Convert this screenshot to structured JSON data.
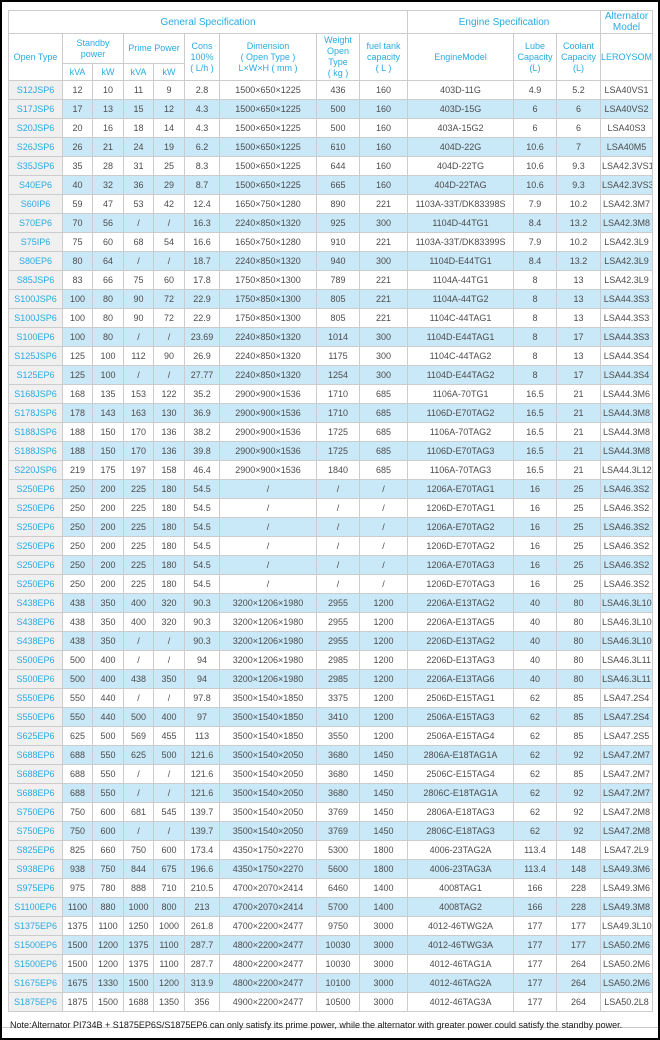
{
  "colors": {
    "accent_text": "#29abe2",
    "alt_row_bg": "#c9e8f8",
    "label_col_bg": "#f0f0f0",
    "border": "#cccccc",
    "body_text": "#4d4d4d"
  },
  "table": {
    "group_headers": {
      "general": "General Specification",
      "engine": "Engine Specification",
      "alternator": "Alternator Model"
    },
    "headers": {
      "open_type": "Open Type",
      "standby_power": "Standby\npower",
      "prime_power": "Prime Power",
      "kva": "kVA",
      "kw": "kW",
      "cons": "Cons\n100%\n( L/h )",
      "dimension": "Dimension\n( Open Type )\nL×W×H ( mm )",
      "weight": "Weight\nOpen Type\n( kg )",
      "fuel": "fuel tank\ncapacity\n( L )",
      "engine_model": "EngineModel",
      "lube": "Lube\nCapacity\n(L)",
      "coolant": "Coolant\nCapacity\n(L)",
      "leroysomer": "LEROYSOMER"
    },
    "rows": [
      [
        "S12JSP6",
        "12",
        "10",
        "11",
        "9",
        "2.8",
        "1500×650×1225",
        "436",
        "160",
        "403D-11G",
        "4.9",
        "5.2",
        "LSA40VS1"
      ],
      [
        "S17JSP6",
        "17",
        "13",
        "15",
        "12",
        "4.3",
        "1500×650×1225",
        "500",
        "160",
        "403D-15G",
        "6",
        "6",
        "LSA40VS2"
      ],
      [
        "S20JSP6",
        "20",
        "16",
        "18",
        "14",
        "4.3",
        "1500×650×1225",
        "500",
        "160",
        "403A-15G2",
        "6",
        "6",
        "LSA40S3"
      ],
      [
        "S26JSP6",
        "26",
        "21",
        "24",
        "19",
        "6.2",
        "1500×650×1225",
        "610",
        "160",
        "404D-22G",
        "10.6",
        "7",
        "LSA40M5"
      ],
      [
        "S35JSP6",
        "35",
        "28",
        "31",
        "25",
        "8.3",
        "1500×650×1225",
        "644",
        "160",
        "404D-22TG",
        "10.6",
        "9.3",
        "LSA42.3VS1"
      ],
      [
        "S40EP6",
        "40",
        "32",
        "36",
        "29",
        "8.7",
        "1500×650×1225",
        "665",
        "160",
        "404D-22TAG",
        "10.6",
        "9.3",
        "LSA42.3VS3"
      ],
      [
        "S60IP6",
        "59",
        "47",
        "53",
        "42",
        "12.4",
        "1650×750×1280",
        "890",
        "221",
        "1103A-33T/DK83398S",
        "7.9",
        "10.2",
        "LSA42.3M7"
      ],
      [
        "S70EP6",
        "70",
        "56",
        "/",
        "/",
        "16.3",
        "2240×850×1320",
        "925",
        "300",
        "1104D-44TG1",
        "8.4",
        "13.2",
        "LSA42.3M8"
      ],
      [
        "S75IP6",
        "75",
        "60",
        "68",
        "54",
        "16.6",
        "1650×750×1280",
        "910",
        "221",
        "1103A-33T/DK83399S",
        "7.9",
        "10.2",
        "LSA42.3L9"
      ],
      [
        "S80EP6",
        "80",
        "64",
        "/",
        "/",
        "18.7",
        "2240×850×1320",
        "940",
        "300",
        "1104D-E44TG1",
        "8.4",
        "13.2",
        "LSA42.3L9"
      ],
      [
        "S85JSP6",
        "83",
        "66",
        "75",
        "60",
        "17.8",
        "1750×850×1300",
        "789",
        "221",
        "1104A-44TG1",
        "8",
        "13",
        "LSA42.3L9"
      ],
      [
        "S100JSP6",
        "100",
        "80",
        "90",
        "72",
        "22.9",
        "1750×850×1300",
        "805",
        "221",
        "1104A-44TG2",
        "8",
        "13",
        "LSA44.3S3"
      ],
      [
        "S100JSP6",
        "100",
        "80",
        "90",
        "72",
        "22.9",
        "1750×850×1300",
        "805",
        "221",
        "1104C-44TAG1",
        "8",
        "13",
        "LSA44.3S3"
      ],
      [
        "S100EP6",
        "100",
        "80",
        "/",
        "/",
        "23.69",
        "2240×850×1320",
        "1014",
        "300",
        "1104D-E44TAG1",
        "8",
        "17",
        "LSA44.3S3"
      ],
      [
        "S125JSP6",
        "125",
        "100",
        "112",
        "90",
        "26.9",
        "2240×850×1320",
        "1175",
        "300",
        "1104C-44TAG2",
        "8",
        "13",
        "LSA44.3S4"
      ],
      [
        "S125EP6",
        "125",
        "100",
        "/",
        "/",
        "27.77",
        "2240×850×1320",
        "1254",
        "300",
        "1104D-E44TAG2",
        "8",
        "17",
        "LSA44.3S4"
      ],
      [
        "S168JSP6",
        "168",
        "135",
        "153",
        "122",
        "35.2",
        "2900×900×1536",
        "1710",
        "685",
        "1106A-70TG1",
        "16.5",
        "21",
        "LSA44.3M6"
      ],
      [
        "S178JSP6",
        "178",
        "143",
        "163",
        "130",
        "36.9",
        "2900×900×1536",
        "1710",
        "685",
        "1106D-E70TAG2",
        "16.5",
        "21",
        "LSA44.3M8"
      ],
      [
        "S188JSP6",
        "188",
        "150",
        "170",
        "136",
        "38.2",
        "2900×900×1536",
        "1725",
        "685",
        "1106A-70TAG2",
        "16.5",
        "21",
        "LSA44.3M8"
      ],
      [
        "S188JSP6",
        "188",
        "150",
        "170",
        "136",
        "39.8",
        "2900×900×1536",
        "1725",
        "685",
        "1106D-E70TAG3",
        "16.5",
        "21",
        "LSA44.3M8"
      ],
      [
        "S220JSP6",
        "219",
        "175",
        "197",
        "158",
        "46.4",
        "2900×900×1536",
        "1840",
        "685",
        "1106A-70TAG3",
        "16.5",
        "21",
        "LSA44.3L12"
      ],
      [
        "S250EP6",
        "250",
        "200",
        "225",
        "180",
        "54.5",
        "/",
        "/",
        "/",
        "1206A-E70TAG1",
        "16",
        "25",
        "LSA46.3S2"
      ],
      [
        "S250EP6",
        "250",
        "200",
        "225",
        "180",
        "54.5",
        "/",
        "/",
        "/",
        "1206D-E70TAG1",
        "16",
        "25",
        "LSA46.3S2"
      ],
      [
        "S250EP6",
        "250",
        "200",
        "225",
        "180",
        "54.5",
        "/",
        "/",
        "/",
        "1206A-E70TAG2",
        "16",
        "25",
        "LSA46.3S2"
      ],
      [
        "S250EP6",
        "250",
        "200",
        "225",
        "180",
        "54.5",
        "/",
        "/",
        "/",
        "1206D-E70TAG2",
        "16",
        "25",
        "LSA46.3S2"
      ],
      [
        "S250EP6",
        "250",
        "200",
        "225",
        "180",
        "54.5",
        "/",
        "/",
        "/",
        "1206A-E70TAG3",
        "16",
        "25",
        "LSA46.3S2"
      ],
      [
        "S250EP6",
        "250",
        "200",
        "225",
        "180",
        "54.5",
        "/",
        "/",
        "/",
        "1206D-E70TAG3",
        "16",
        "25",
        "LSA46.3S2"
      ],
      [
        "S438EP6",
        "438",
        "350",
        "400",
        "320",
        "90.3",
        "3200×1206×1980",
        "2955",
        "1200",
        "2206A-E13TAG2",
        "40",
        "80",
        "LSA46.3L10"
      ],
      [
        "S438EP6",
        "438",
        "350",
        "400",
        "320",
        "90.3",
        "3200×1206×1980",
        "2955",
        "1200",
        "2206A-E13TAG5",
        "40",
        "80",
        "LSA46.3L10"
      ],
      [
        "S438EP6",
        "438",
        "350",
        "/",
        "/",
        "90.3",
        "3200×1206×1980",
        "2955",
        "1200",
        "2206D-E13TAG2",
        "40",
        "80",
        "LSA46.3L10"
      ],
      [
        "S500EP6",
        "500",
        "400",
        "/",
        "/",
        "94",
        "3200×1206×1980",
        "2985",
        "1200",
        "2206D-E13TAG3",
        "40",
        "80",
        "LSA46.3L11"
      ],
      [
        "S500EP6",
        "500",
        "400",
        "438",
        "350",
        "94",
        "3200×1206×1980",
        "2985",
        "1200",
        "2206A-E13TAG6",
        "40",
        "80",
        "LSA46.3L11"
      ],
      [
        "S550EP6",
        "550",
        "440",
        "/",
        "/",
        "97.8",
        "3500×1540×1850",
        "3375",
        "1200",
        "2506D-E15TAG1",
        "62",
        "85",
        "LSA47.2S4"
      ],
      [
        "S550EP6",
        "550",
        "440",
        "500",
        "400",
        "97",
        "3500×1540×1850",
        "3410",
        "1200",
        "2506A-E15TAG3",
        "62",
        "85",
        "LSA47.2S4"
      ],
      [
        "S625EP6",
        "625",
        "500",
        "569",
        "455",
        "113",
        "3500×1540×1850",
        "3550",
        "1200",
        "2506A-E15TAG4",
        "62",
        "85",
        "LSA47.2S5"
      ],
      [
        "S688EP6",
        "688",
        "550",
        "625",
        "500",
        "121.6",
        "3500×1540×2050",
        "3680",
        "1450",
        "2806A-E18TAG1A",
        "62",
        "92",
        "LSA47.2M7"
      ],
      [
        "S688EP6",
        "688",
        "550",
        "/",
        "/",
        "121.6",
        "3500×1540×2050",
        "3680",
        "1450",
        "2506C-E15TAG4",
        "62",
        "85",
        "LSA47.2M7"
      ],
      [
        "S688EP6",
        "688",
        "550",
        "/",
        "/",
        "121.6",
        "3500×1540×2050",
        "3680",
        "1450",
        "2806C-E18TAG1A",
        "62",
        "92",
        "LSA47.2M7"
      ],
      [
        "S750EP6",
        "750",
        "600",
        "681",
        "545",
        "139.7",
        "3500×1540×2050",
        "3769",
        "1450",
        "2806A-E18TAG3",
        "62",
        "92",
        "LSA47.2M8"
      ],
      [
        "S750EP6",
        "750",
        "600",
        "/",
        "/",
        "139.7",
        "3500×1540×2050",
        "3769",
        "1450",
        "2806C-E18TAG3",
        "62",
        "92",
        "LSA47.2M8"
      ],
      [
        "S825EP6",
        "825",
        "660",
        "750",
        "600",
        "173.4",
        "4350×1750×2270",
        "5300",
        "1800",
        "4006-23TAG2A",
        "113.4",
        "148",
        "LSA47.2L9"
      ],
      [
        "S938EP6",
        "938",
        "750",
        "844",
        "675",
        "196.6",
        "4350×1750×2270",
        "5600",
        "1800",
        "4006-23TAG3A",
        "113.4",
        "148",
        "LSA49.3M6"
      ],
      [
        "S975EP6",
        "975",
        "780",
        "888",
        "710",
        "210.5",
        "4700×2070×2414",
        "6460",
        "1400",
        "4008TAG1",
        "166",
        "228",
        "LSA49.3M6"
      ],
      [
        "S1100EP6",
        "1100",
        "880",
        "1000",
        "800",
        "213",
        "4700×2070×2414",
        "5700",
        "1400",
        "4008TAG2",
        "166",
        "228",
        "LSA49.3M8"
      ],
      [
        "S1375EP6",
        "1375",
        "1100",
        "1250",
        "1000",
        "261.8",
        "4700×2200×2477",
        "9750",
        "3000",
        "4012-46TWG2A",
        "177",
        "177",
        "LSA49.3L10"
      ],
      [
        "S1500EP6",
        "1500",
        "1200",
        "1375",
        "1100",
        "287.7",
        "4800×2200×2477",
        "10030",
        "3000",
        "4012-46TWG3A",
        "177",
        "177",
        "LSA50.2M6"
      ],
      [
        "S1500EP6",
        "1500",
        "1200",
        "1375",
        "1100",
        "287.7",
        "4800×2200×2477",
        "10030",
        "3000",
        "4012-46TAG1A",
        "177",
        "264",
        "LSA50.2M6"
      ],
      [
        "S1675EP6",
        "1675",
        "1330",
        "1500",
        "1200",
        "313.9",
        "4800×2200×2477",
        "10100",
        "3000",
        "4012-46TAG2A",
        "177",
        "264",
        "LSA50.2M6"
      ],
      [
        "S1875EP6",
        "1875",
        "1500",
        "1688",
        "1350",
        "356",
        "4900×2200×2477",
        "10500",
        "3000",
        "4012-46TAG3A",
        "177",
        "264",
        "LSA50.2L8"
      ]
    ]
  },
  "note": "Note:Alternator PI734B + S1875EP6S/S1875EP6 can only satisfy its prime power, while the alternator with greater power could satisfy the standby power."
}
